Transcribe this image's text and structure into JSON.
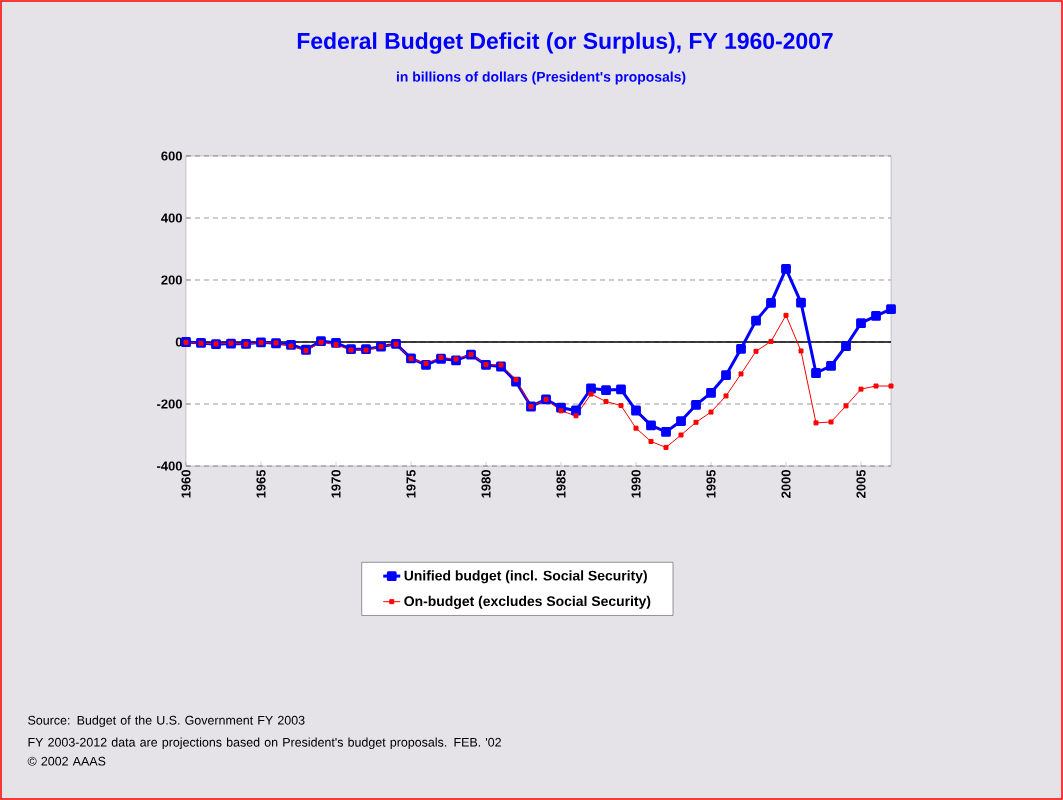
{
  "chart_data": {
    "type": "line",
    "title": "Federal Budget Deficit (or Surplus), FY 1960-2007",
    "subtitle": "in billions of dollars (President's proposals)",
    "x": [
      1960,
      1961,
      1962,
      1963,
      1964,
      1965,
      1966,
      1967,
      1968,
      1969,
      1970,
      1971,
      1972,
      1973,
      1974,
      1975,
      1976,
      1977,
      1978,
      1979,
      1980,
      1981,
      1982,
      1983,
      1984,
      1985,
      1986,
      1987,
      1988,
      1989,
      1990,
      1991,
      1992,
      1993,
      1994,
      1995,
      1996,
      1997,
      1998,
      1999,
      2000,
      2001,
      2002,
      2003,
      2004,
      2005,
      2006,
      2007
    ],
    "series": [
      {
        "name": "Unified budget (incl. Social Security)",
        "color": "#0000ff",
        "values": [
          0,
          -3,
          -7,
          -5,
          -6,
          -1,
          -4,
          -9,
          -25,
          3,
          -3,
          -23,
          -23,
          -15,
          -6,
          -53,
          -74,
          -54,
          -59,
          -41,
          -74,
          -79,
          -128,
          -208,
          -185,
          -212,
          -221,
          -150,
          -155,
          -153,
          -221,
          -269,
          -290,
          -255,
          -203,
          -164,
          -107,
          -22,
          69,
          126,
          236,
          127,
          -100,
          -77,
          -13,
          61,
          84,
          106
        ]
      },
      {
        "name": "On-budget (excludes Social Security)",
        "color": "#ff0000",
        "values": [
          -1,
          -4,
          -6,
          -4,
          -7,
          -2,
          -3,
          -13,
          -28,
          -1,
          -9,
          -26,
          -26,
          -15,
          -7,
          -54,
          -69,
          -50,
          -55,
          -40,
          -73,
          -74,
          -121,
          -208,
          -185,
          -222,
          -238,
          -168,
          -192,
          -205,
          -278,
          -321,
          -340,
          -300,
          -259,
          -226,
          -174,
          -103,
          -30,
          2,
          86,
          -29,
          -261,
          -258,
          -206,
          -152,
          -142,
          -142
        ]
      }
    ],
    "xlim": [
      1960,
      2007
    ],
    "xticks": [
      1960,
      1965,
      1970,
      1975,
      1980,
      1985,
      1990,
      1995,
      2000,
      2005
    ],
    "ylim": [
      -400,
      600
    ],
    "yticks": [
      -400,
      -200,
      0,
      200,
      400,
      600
    ],
    "grid": "y",
    "legend": "bottom",
    "marker": "square",
    "line_style": "solid",
    "ref_lines": [
      {
        "axis": "y",
        "value": 0,
        "color": "#000000",
        "line_style": "solid"
      }
    ],
    "annotations": [
      "Source: Budget of the U.S. Government FY 2003",
      "FY 2003-2012 data are projections based on President's budget proposals.  FEB. '02 © 2002 AAAS"
    ]
  }
}
